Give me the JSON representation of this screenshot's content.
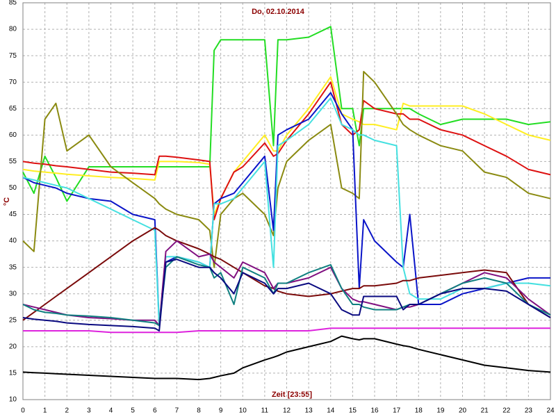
{
  "chart_data": {
    "type": "line",
    "title": "Do, 02.10.2014",
    "xlabel": "Zeit [23:55]",
    "ylabel": "°C",
    "x": [
      0,
      0.5,
      1,
      1.5,
      2,
      3,
      4,
      5,
      6,
      6.2,
      6.5,
      7,
      8,
      8.5,
      8.7,
      9,
      9.6,
      10,
      11,
      11.4,
      11.6,
      12,
      13,
      14,
      14.5,
      15,
      15.3,
      15.5,
      16,
      17,
      17.3,
      17.6,
      18,
      19,
      20,
      21,
      22,
      23,
      24
    ],
    "xlim": [
      0,
      24
    ],
    "xticks": [
      0,
      1,
      2,
      3,
      4,
      5,
      6,
      7,
      8,
      9,
      10,
      11,
      12,
      13,
      14,
      15,
      16,
      17,
      18,
      19,
      20,
      21,
      22,
      23,
      24
    ],
    "ylim": [
      10,
      85
    ],
    "yticks": [
      10,
      15,
      20,
      25,
      30,
      35,
      40,
      45,
      50,
      55,
      60,
      65,
      70,
      75,
      80,
      85
    ],
    "grid": true,
    "series": [
      {
        "color": "#22dd22",
        "values": [
          53,
          49,
          56,
          52,
          47.5,
          54,
          54,
          54,
          54,
          54,
          54,
          54,
          54,
          54,
          76,
          78,
          78,
          78,
          78,
          58,
          78,
          78,
          78.5,
          80.5,
          65,
          65,
          58,
          65,
          65,
          65,
          65,
          65,
          64,
          62,
          63,
          63,
          63,
          62,
          62.5
        ]
      },
      {
        "color": "#ffee22",
        "values": [
          53.5,
          53.2,
          53,
          52.8,
          52.6,
          52.3,
          52,
          51.8,
          51.5,
          55,
          55,
          55,
          54.8,
          54.5,
          45,
          48,
          53,
          55,
          60,
          57,
          57,
          60,
          65,
          71,
          64,
          63,
          62.5,
          62,
          62,
          61,
          66,
          65.5,
          65.5,
          65.5,
          65.5,
          64,
          62,
          60,
          59
        ]
      },
      {
        "color": "#dd1111",
        "values": [
          55,
          54.7,
          54.5,
          54.2,
          54,
          53.5,
          53,
          52.8,
          52.5,
          56,
          56,
          55.8,
          55.3,
          55,
          44,
          48,
          53,
          54,
          58.5,
          56,
          56.5,
          59,
          64,
          70,
          62,
          60,
          61,
          66.5,
          65,
          64,
          64,
          63,
          63,
          61,
          60,
          58,
          56,
          53.5,
          52.5
        ]
      },
      {
        "color": "#8a8a10",
        "values": [
          40,
          38,
          63,
          66,
          57,
          60,
          54,
          51,
          48,
          47,
          46,
          45,
          44,
          42,
          35,
          45,
          48,
          49,
          45,
          41,
          50,
          55,
          59,
          62,
          50,
          49,
          48,
          72,
          70,
          64,
          62,
          61,
          60,
          58,
          57,
          53,
          52,
          49,
          48
        ]
      },
      {
        "color": "#0a14c8",
        "values": [
          52,
          51,
          50.5,
          50,
          49,
          48,
          47.5,
          45,
          44,
          24,
          36,
          37,
          36,
          35,
          47,
          48,
          49,
          51,
          56,
          42,
          60,
          61,
          63,
          68,
          64,
          61,
          31,
          44,
          40,
          36,
          35,
          45,
          28,
          28,
          30,
          31,
          32,
          33,
          33
        ]
      },
      {
        "color": "#44e0e0",
        "values": [
          52,
          51.5,
          51,
          50.5,
          50,
          48,
          46,
          44,
          42,
          24,
          37,
          37,
          36,
          35,
          47,
          47,
          48,
          50,
          55,
          35,
          58,
          59,
          62,
          67,
          62,
          61,
          60,
          60,
          59,
          58,
          35,
          30,
          29,
          29,
          31,
          31,
          32,
          32,
          31.5
        ]
      },
      {
        "color": "#7a0a0a",
        "values": [
          25,
          26.5,
          28,
          29.5,
          31,
          34,
          37,
          40,
          42.5,
          42,
          41,
          40,
          38.5,
          37.5,
          37,
          36.5,
          35,
          34,
          31.5,
          31,
          30.5,
          30,
          29.5,
          30,
          30.5,
          31,
          31,
          31.5,
          31.5,
          32,
          32.5,
          32.5,
          33,
          33.5,
          34,
          34.5,
          34,
          28,
          25.5
        ]
      },
      {
        "color": "#801080",
        "values": [
          28,
          27.5,
          27,
          26.5,
          26,
          25.5,
          25.3,
          25,
          25,
          24,
          38,
          40,
          37,
          37.5,
          36,
          35,
          33,
          36,
          34,
          31,
          32,
          32,
          33,
          35,
          31,
          29,
          28.5,
          28.5,
          28,
          27,
          27.5,
          27.5,
          28,
          30,
          32,
          34,
          33,
          29,
          26
        ]
      },
      {
        "color": "#108080",
        "values": [
          28,
          27,
          26.5,
          26.3,
          26,
          25.8,
          25.5,
          25,
          24.5,
          24,
          35,
          37,
          35.5,
          35,
          33,
          34,
          28,
          35,
          33,
          30,
          32,
          32,
          34,
          35.5,
          31,
          28,
          28,
          27.5,
          27,
          27,
          27.5,
          28,
          28,
          30,
          32,
          33,
          32,
          28,
          26
        ]
      },
      {
        "color": "#0a0a80",
        "values": [
          25.5,
          25.2,
          25,
          24.8,
          24.5,
          24.2,
          24,
          23.8,
          23.5,
          23,
          36,
          36.5,
          35,
          35,
          34,
          33,
          30,
          34,
          32,
          30,
          31,
          31,
          32,
          30,
          27,
          26,
          26,
          29.5,
          29.5,
          29.5,
          27,
          28,
          28,
          30,
          31,
          31,
          30.5,
          28,
          25.5
        ]
      },
      {
        "color": "#dd22dd",
        "values": [
          23,
          23,
          23,
          23,
          23,
          23,
          22.7,
          22.7,
          22.7,
          22.7,
          22.7,
          22.7,
          23,
          23,
          23,
          23,
          23,
          23,
          23,
          23,
          23,
          23,
          23,
          23.5,
          23.5,
          23.5,
          23.5,
          23.5,
          23.5,
          23.5,
          23.5,
          23.5,
          23.5,
          23.5,
          23.5,
          23.5,
          23.5,
          23.5,
          23.5
        ]
      },
      {
        "color": "#000000",
        "values": [
          15.2,
          15.1,
          15,
          14.9,
          14.8,
          14.6,
          14.4,
          14.2,
          14,
          14,
          14,
          14,
          13.8,
          14,
          14.2,
          14.5,
          15,
          16,
          17.5,
          18,
          18.3,
          19,
          20,
          21,
          22,
          21.5,
          21.3,
          21.5,
          21.5,
          20.5,
          20.2,
          20,
          19.5,
          18.5,
          17.5,
          16.5,
          16,
          15.5,
          15.2
        ]
      }
    ]
  }
}
